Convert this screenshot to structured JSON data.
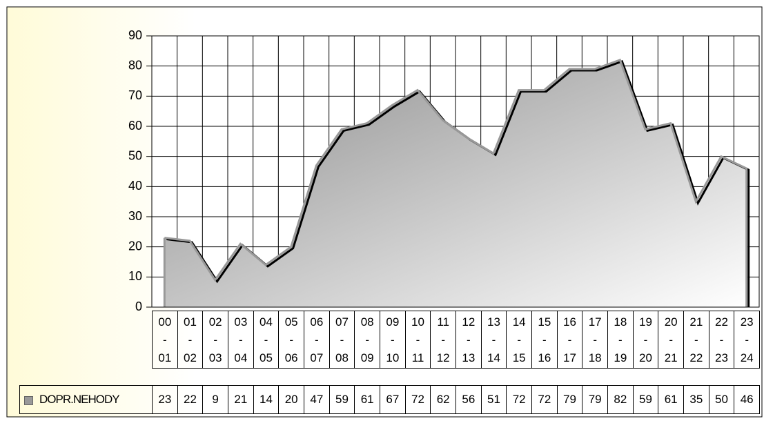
{
  "chart_data": {
    "type": "area",
    "categories": [
      "00 - 01",
      "01 - 02",
      "02 - 03",
      "03 - 04",
      "04 - 05",
      "05 - 06",
      "06 - 07",
      "07 - 08",
      "08 - 09",
      "09 - 10",
      "10 - 11",
      "11 - 12",
      "12 - 13",
      "13 - 14",
      "14 - 15",
      "15 - 16",
      "16 - 17",
      "17 - 18",
      "18 - 19",
      "19 - 20",
      "20 - 21",
      "21 - 22",
      "22 - 23",
      "23 - 24"
    ],
    "series": [
      {
        "name": "DOPR.NEHODY",
        "color": "#999999",
        "values": [
          23,
          22,
          9,
          21,
          14,
          20,
          47,
          59,
          61,
          67,
          72,
          62,
          56,
          51,
          72,
          72,
          79,
          79,
          82,
          59,
          61,
          35,
          50,
          46
        ]
      }
    ],
    "ylim": [
      0,
      90
    ],
    "yticks": [
      0,
      10,
      20,
      30,
      40,
      50,
      60,
      70,
      80,
      90
    ],
    "grid": true,
    "legend": "bottom-left"
  }
}
